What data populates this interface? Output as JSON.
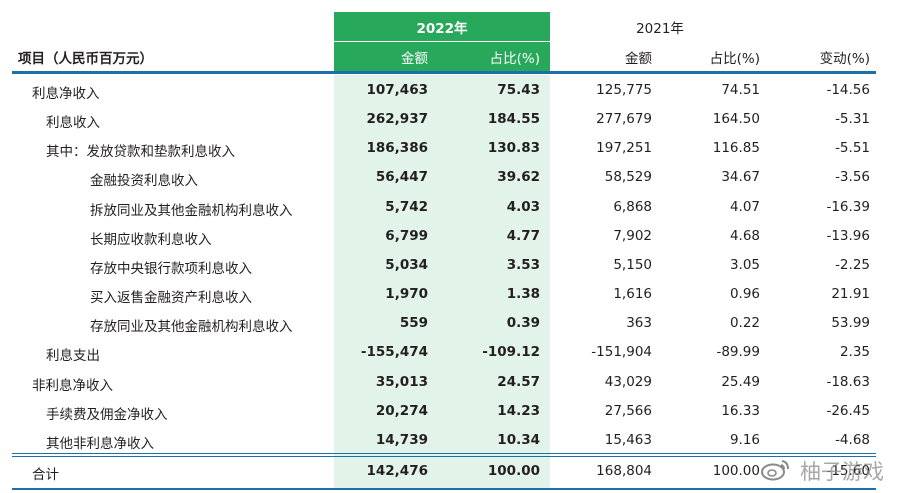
{
  "header": {
    "item_label": "项目（人民币百万元）",
    "year_2022": "2022年",
    "year_2021": "2021年",
    "amount": "金额",
    "share": "占比(%)",
    "change": "变动(%)"
  },
  "rows": [
    {
      "label": "利息净收入",
      "a22": "107,463",
      "s22": "75.43",
      "a21": "125,775",
      "s21": "74.51",
      "chg": "-14.56"
    },
    {
      "label": "利息收入",
      "a22": "262,937",
      "s22": "184.55",
      "a21": "277,679",
      "s21": "164.50",
      "chg": "-5.31"
    },
    {
      "label": "其中：发放贷款和垫款利息收入",
      "a22": "186,386",
      "s22": "130.83",
      "a21": "197,251",
      "s21": "116.85",
      "chg": "-5.51"
    },
    {
      "label": "金融投资利息收入",
      "a22": "56,447",
      "s22": "39.62",
      "a21": "58,529",
      "s21": "34.67",
      "chg": "-3.56"
    },
    {
      "label": "拆放同业及其他金融机构利息收入",
      "a22": "5,742",
      "s22": "4.03",
      "a21": "6,868",
      "s21": "4.07",
      "chg": "-16.39"
    },
    {
      "label": "长期应收款利息收入",
      "a22": "6,799",
      "s22": "4.77",
      "a21": "7,902",
      "s21": "4.68",
      "chg": "-13.96"
    },
    {
      "label": "存放中央银行款项利息收入",
      "a22": "5,034",
      "s22": "3.53",
      "a21": "5,150",
      "s21": "3.05",
      "chg": "-2.25"
    },
    {
      "label": "买入返售金融资产利息收入",
      "a22": "1,970",
      "s22": "1.38",
      "a21": "1,616",
      "s21": "0.96",
      "chg": "21.91"
    },
    {
      "label": "存放同业及其他金融机构利息收入",
      "a22": "559",
      "s22": "0.39",
      "a21": "363",
      "s21": "0.22",
      "chg": "53.99"
    },
    {
      "label": "利息支出",
      "a22": "-155,474",
      "s22": "-109.12",
      "a21": "-151,904",
      "s21": "-89.99",
      "chg": "2.35"
    },
    {
      "label": "非利息净收入",
      "a22": "35,013",
      "s22": "24.57",
      "a21": "43,029",
      "s21": "25.49",
      "chg": "-18.63"
    },
    {
      "label": "手续费及佣金净收入",
      "a22": "20,274",
      "s22": "14.23",
      "a21": "27,566",
      "s21": "16.33",
      "chg": "-26.45"
    },
    {
      "label": "其他非利息净收入",
      "a22": "14,739",
      "s22": "10.34",
      "a21": "15,463",
      "s21": "9.16",
      "chg": "-4.68"
    }
  ],
  "total": {
    "label": "合计",
    "a22": "142,476",
    "s22": "100.00",
    "a21": "168,804",
    "s21": "100.00",
    "chg": "-15.60"
  },
  "watermark": "柚子游戏",
  "colors": {
    "green": "#27a85a",
    "highlight": "#e2f4ea",
    "rule": "#1d6fa8"
  }
}
